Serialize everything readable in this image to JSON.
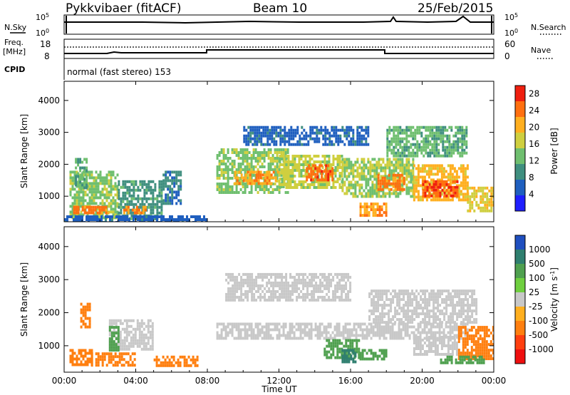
{
  "header": {
    "station": "Pykkvibaer (fitACF)",
    "beam": "Beam 10",
    "date": "25/Feb/2015"
  },
  "status_panels": {
    "nsky_label": "N.Sky",
    "nsky_tick_top": "10^5",
    "nsky_tick_bottom": "10^0",
    "nsearch_label": "N.Search",
    "nsearch_tick_top": "10^5",
    "nsearch_tick_bottom": "10^0",
    "freq_label": "Freq.",
    "freq_unit": "[MHz]",
    "freq_tick_top": "18",
    "freq_tick_bottom": "8",
    "nave_label": "Nave",
    "nave_tick_top": "60",
    "nave_tick_bottom": "0",
    "cpid_label": "CPID",
    "cpid_text": "normal (fast stereo) 153"
  },
  "colors": {
    "power_scale": [
      "#1f1fff",
      "#1f5fbf",
      "#3f8f7f",
      "#6fbf6f",
      "#cfcf3f",
      "#ffaf1f",
      "#ff6f0f",
      "#ef1f0f"
    ],
    "velocity_scale": [
      "#1f4fbf",
      "#2f7f6f",
      "#4fa04f",
      "#6fcf3f",
      "#c8c8c8",
      "#ffaf1f",
      "#ff7f0f",
      "#ff3f0f",
      "#ef0f0f"
    ]
  },
  "chart_data": [
    {
      "type": "heatmap",
      "name": "power",
      "ylabel": "Slant Range [km]",
      "ylim": [
        200,
        4600
      ],
      "yticks": [
        "1000",
        "2000",
        "3000",
        "4000"
      ],
      "xlim": [
        "00:00",
        "24:00"
      ],
      "colorbar_label": "Power [dB]",
      "colorbar_ticks": [
        "4",
        "8",
        "12",
        "16",
        "20",
        "24",
        "28"
      ],
      "colorbar_range": [
        0,
        30
      ],
      "regions": [
        {
          "t0": 0.3,
          "t1": 3.0,
          "r0": 300,
          "r1": 1800,
          "value": 14
        },
        {
          "t0": 0.5,
          "t1": 2.5,
          "r0": 450,
          "r1": 700,
          "value": 24
        },
        {
          "t0": 0.6,
          "t1": 1.3,
          "r0": 1300,
          "r1": 2200,
          "value": 12
        },
        {
          "t0": 3.0,
          "t1": 5.5,
          "r0": 300,
          "r1": 1500,
          "value": 10
        },
        {
          "t0": 3.3,
          "t1": 4.5,
          "r0": 500,
          "r1": 700,
          "value": 22
        },
        {
          "t0": 5.5,
          "t1": 6.5,
          "r0": 800,
          "r1": 1800,
          "value": 8
        },
        {
          "t0": 8.5,
          "t1": 12.5,
          "r0": 1100,
          "r1": 2500,
          "value": 14
        },
        {
          "t0": 9.5,
          "t1": 12.0,
          "r0": 1400,
          "r1": 1800,
          "value": 22
        },
        {
          "t0": 12.0,
          "t1": 15.5,
          "r0": 1300,
          "r1": 2300,
          "value": 16
        },
        {
          "t0": 13.5,
          "t1": 15.0,
          "r0": 1500,
          "r1": 2000,
          "value": 25
        },
        {
          "t0": 15.5,
          "t1": 19.5,
          "r0": 1000,
          "r1": 2200,
          "value": 15
        },
        {
          "t0": 17.5,
          "t1": 19.0,
          "r0": 1200,
          "r1": 1700,
          "value": 24
        },
        {
          "t0": 19.5,
          "t1": 22.5,
          "r0": 900,
          "r1": 2000,
          "value": 20
        },
        {
          "t0": 20.0,
          "t1": 22.0,
          "r0": 1000,
          "r1": 1500,
          "value": 26
        },
        {
          "t0": 22.5,
          "t1": 24.0,
          "r0": 500,
          "r1": 1300,
          "value": 18
        },
        {
          "t0": 10.0,
          "t1": 17.0,
          "r0": 2600,
          "r1": 3200,
          "value": 6
        },
        {
          "t0": 18.0,
          "t1": 22.5,
          "r0": 2300,
          "r1": 3200,
          "value": 12
        },
        {
          "t0": 16.5,
          "t1": 18.0,
          "r0": 400,
          "r1": 800,
          "value": 22
        },
        {
          "t0": 0.0,
          "t1": 8.0,
          "r0": 200,
          "r1": 400,
          "value": 6
        }
      ]
    },
    {
      "type": "heatmap",
      "name": "velocity",
      "ylabel": "Slant Range [km]",
      "ylim": [
        200,
        4600
      ],
      "yticks": [
        "1000",
        "2000",
        "3000",
        "4000"
      ],
      "xlim": [
        "00:00",
        "24:00"
      ],
      "xticks": [
        "00:00",
        "04:00",
        "08:00",
        "12:00",
        "16:00",
        "20:00",
        "00:00"
      ],
      "xlabel": "Time UT",
      "colorbar_label": "Velocity [m s^-1]",
      "colorbar_ticks": [
        "1000",
        "500",
        "100",
        "25",
        "-25",
        "-100",
        "-500",
        "-1000"
      ],
      "regions": [
        {
          "t0": 0.3,
          "t1": 1.5,
          "r0": 400,
          "r1": 900,
          "value": -400
        },
        {
          "t0": 1.5,
          "t1": 4.0,
          "r0": 450,
          "r1": 800,
          "value": -450
        },
        {
          "t0": 0.9,
          "t1": 1.4,
          "r0": 1600,
          "r1": 2300,
          "value": -300
        },
        {
          "t0": 2.5,
          "t1": 5.0,
          "r0": 900,
          "r1": 1800,
          "value": 0
        },
        {
          "t0": 2.5,
          "t1": 3.0,
          "r0": 900,
          "r1": 1600,
          "value": 150
        },
        {
          "t0": 5.0,
          "t1": 7.5,
          "r0": 400,
          "r1": 700,
          "value": -150
        },
        {
          "t0": 8.5,
          "t1": 22.5,
          "r0": 1200,
          "r1": 1700,
          "value": 0
        },
        {
          "t0": 9.0,
          "t1": 16.0,
          "r0": 2400,
          "r1": 3200,
          "value": 0
        },
        {
          "t0": 17.0,
          "t1": 23.0,
          "r0": 1700,
          "r1": 2700,
          "value": 0
        },
        {
          "t0": 14.5,
          "t1": 16.5,
          "r0": 600,
          "r1": 1200,
          "value": 400
        },
        {
          "t0": 16.5,
          "t1": 18.0,
          "r0": 600,
          "r1": 900,
          "value": 300
        },
        {
          "t0": 15.5,
          "t1": 16.3,
          "r0": 500,
          "r1": 900,
          "value": 900
        },
        {
          "t0": 19.5,
          "t1": 22.0,
          "r0": 700,
          "r1": 1300,
          "value": 0
        },
        {
          "t0": 22.0,
          "t1": 24.0,
          "r0": 600,
          "r1": 1600,
          "value": -200
        },
        {
          "t0": 21.0,
          "t1": 23.5,
          "r0": 500,
          "r1": 700,
          "value": 250
        }
      ]
    }
  ]
}
